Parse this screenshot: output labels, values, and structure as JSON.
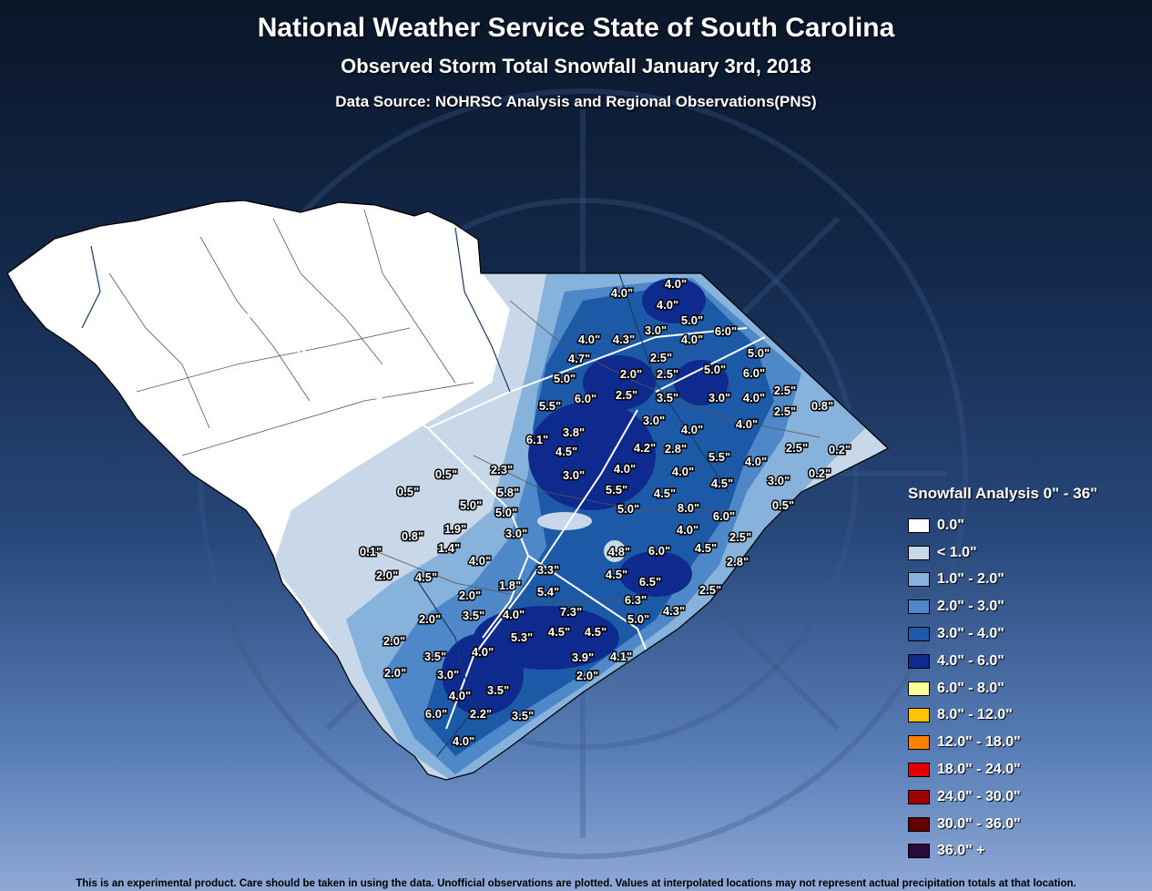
{
  "header": {
    "title": "National Weather Service State of South Carolina",
    "subtitle": "Observed Storm Total Snowfall January 3rd, 2018",
    "source": "Data Source: NOHRSC Analysis and Regional Observations(PNS)"
  },
  "legend": {
    "title": "Snowfall Analysis 0\" - 36\"",
    "items": [
      {
        "label": "0.0\"",
        "color": "#ffffff"
      },
      {
        "label": "< 1.0\"",
        "color": "#c8d8e8"
      },
      {
        "label": "1.0\" - 2.0\"",
        "color": "#86b2dc"
      },
      {
        "label": "2.0\" - 3.0\"",
        "color": "#4f88c8"
      },
      {
        "label": "3.0\" - 4.0\"",
        "color": "#1c5aa8"
      },
      {
        "label": "4.0\" - 6.0\"",
        "color": "#0e2a8e"
      },
      {
        "label": "6.0\" - 8.0\"",
        "color": "#ffff99"
      },
      {
        "label": "8.0\" - 12.0\"",
        "color": "#ffc400"
      },
      {
        "label": "12.0\" - 18.0\"",
        "color": "#ff8000"
      },
      {
        "label": "18.0\" - 24.0\"",
        "color": "#e00000"
      },
      {
        "label": "24.0\" - 30.0\"",
        "color": "#a00000"
      },
      {
        "label": "30.0\" - 36.0\"",
        "color": "#600000"
      },
      {
        "label": "36.0\" +",
        "color": "#2a0a3a"
      }
    ]
  },
  "observations": [
    "4.0\"",
    "4.0\"",
    "4.0\"",
    "5.0\"",
    "3.0\"",
    "6.0\"",
    "4.0\"",
    "4.3\"",
    "4.0\"",
    "4.7\"",
    "2.5\"",
    "5.0\"",
    "5.0\"",
    "2.0\"",
    "2.5\"",
    "5.0\"",
    "6.0\"",
    "5.5\"",
    "6.0\"",
    "2.5\"",
    "3.5\"",
    "3.0\"",
    "4.0\"",
    "2.5\"",
    "0.8\"",
    "3.0\"",
    "4.0\"",
    "2.5\"",
    "3.8\"",
    "6.1\"",
    "4.0\"",
    "4.0\"",
    "4.2\"",
    "2.8\"",
    "4.5\"",
    "2.5\"",
    "0.2\"",
    "5.5\"",
    "4.0\"",
    "2.3\"",
    "0.5\"",
    "3.0\"",
    "4.0\"",
    "4.0\"",
    "3.0\"",
    "0.2\"",
    "4.5\"",
    "0.5\"",
    "5.8\"",
    "5.5\"",
    "4.5\"",
    "0.5\"",
    "5.0\"",
    "5.0\"",
    "8.0\"",
    "5.0\"",
    "6.0\"",
    "1.9\"",
    "3.0\"",
    "4.0\"",
    "0.8\"",
    "2.5\"",
    "0.1\"",
    "1.4\"",
    "4.0\"",
    "4.8\"",
    "6.0\"",
    "4.5\"",
    "2.8\"",
    "3.3\"",
    "2.0\"",
    "4.5\"",
    "4.5\"",
    "6.5\"",
    "1.8\"",
    "2.0\"",
    "5.4\"",
    "2.5\"",
    "6.3\"",
    "4.3\"",
    "3.5\"",
    "7.3\"",
    "2.0\"",
    "4.0\"",
    "5.0\"",
    "5.3\"",
    "4.5\"",
    "4.5\"",
    "2.0\"",
    "4.0\"",
    "3.5\"",
    "3.9\"",
    "4.1\"",
    "2.0\"",
    "3.0\"",
    "2.0\"",
    "4.0\"",
    "3.5\"",
    "6.0\"",
    "2.2\"",
    "3.5\"",
    "4.0\""
  ],
  "footer": "This is an experimental product. Care should be taken in using the data. Unofficial observations are plotted. Values at interpolated locations may not represent actual precipitation totals at that location."
}
